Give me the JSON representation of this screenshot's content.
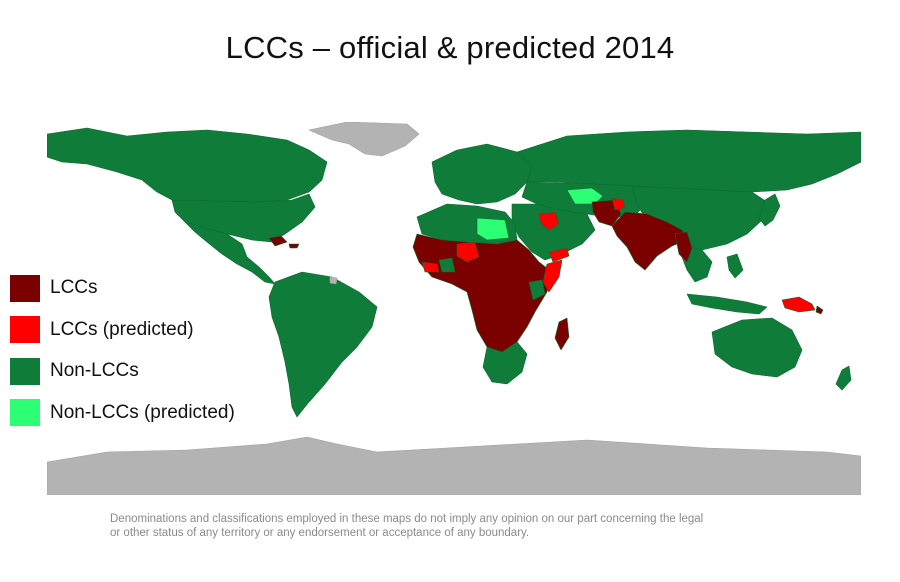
{
  "title": "LCCs – official & predicted 2014",
  "legend": {
    "items": [
      {
        "label": "LCCs",
        "color": "#7b0000"
      },
      {
        "label": "LCCs (predicted)",
        "color": "#ff0000"
      },
      {
        "label": "Non-LCCs",
        "color": "#107c3a"
      },
      {
        "label": "Non-LCCs (predicted)",
        "color": "#2cff74"
      }
    ]
  },
  "colors": {
    "no_data": "#b3b3b3",
    "border": "#0a6a30"
  },
  "disclaimer": {
    "line1": "Denominations and classifications employed in these maps do not imply  any opinion on our part concerning the legal",
    "line2": "or other  status  of any territory or any endorsement or acceptance of any boundary."
  }
}
